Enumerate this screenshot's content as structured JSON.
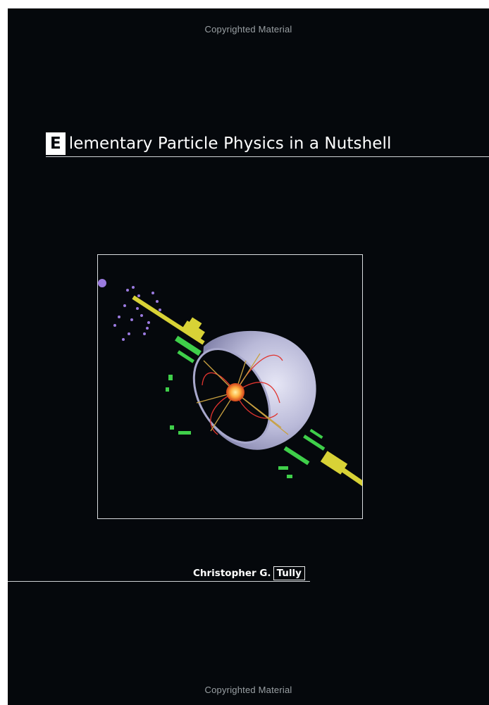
{
  "watermark": {
    "top": "Copyrighted Material",
    "bottom": "Copyrighted Material"
  },
  "title": {
    "initial": "E",
    "rest": "lementary Particle Physics in a Nutshell"
  },
  "author": {
    "first": "Christopher G.",
    "last": "Tully"
  },
  "colors": {
    "background": "#05080c",
    "text": "#ffffff",
    "detector": "#c9c9e6",
    "tracks": "#e0342f",
    "beampipe": "#d8d236",
    "chambers": "#3fcf4a",
    "hits": "#9b7be0"
  },
  "cover_image": "particle-collision-event-display"
}
